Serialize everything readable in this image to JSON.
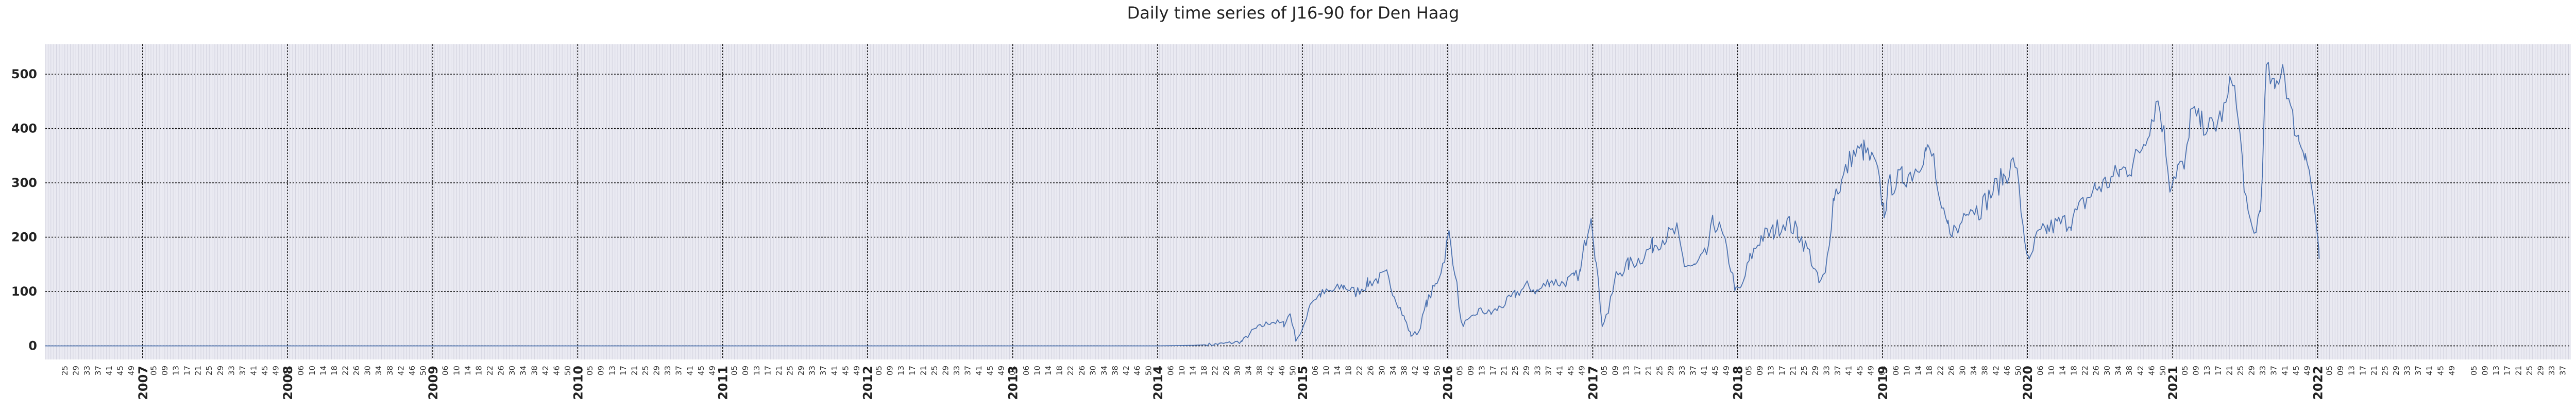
{
  "chart_data": {
    "type": "line",
    "title": "Daily time series of J16-90 for Den Haag",
    "xlabel": "",
    "ylabel": "",
    "x_range": [
      "2006-05-01",
      "2023-10-01"
    ],
    "ylim": [
      -25,
      555
    ],
    "yticks": [
      0,
      100,
      200,
      300,
      400,
      500
    ],
    "grid": true,
    "x_major_ticks": [
      "2007",
      "2008",
      "2009",
      "2010",
      "2011",
      "2012",
      "2013",
      "2014",
      "2015",
      "2016",
      "2017",
      "2018",
      "2019",
      "2020",
      "2021",
      "2022"
    ],
    "x_minor_tick_format": "ISO week number (every ~4 weeks)",
    "series": [
      {
        "name": "",
        "color": "#4c72b0",
        "points": [
          [
            "2006-05-01",
            0
          ],
          [
            "2013-12-31",
            0
          ],
          [
            "2014-04-01",
            1
          ],
          [
            "2014-06-01",
            3
          ],
          [
            "2014-08-01",
            8
          ],
          [
            "2014-09-01",
            30
          ],
          [
            "2014-10-15",
            45
          ],
          [
            "2014-11-15",
            40
          ],
          [
            "2014-12-01",
            60
          ],
          [
            "2014-12-15",
            12
          ],
          [
            "2015-01-01",
            28
          ],
          [
            "2015-01-20",
            80
          ],
          [
            "2015-02-15",
            95
          ],
          [
            "2015-03-15",
            100
          ],
          [
            "2015-04-15",
            110
          ],
          [
            "2015-05-15",
            98
          ],
          [
            "2015-06-15",
            115
          ],
          [
            "2015-07-15",
            125
          ],
          [
            "2015-08-01",
            130
          ],
          [
            "2015-08-20",
            95
          ],
          [
            "2015-09-15",
            50
          ],
          [
            "2015-10-01",
            20
          ],
          [
            "2015-10-20",
            25
          ],
          [
            "2015-11-10",
            80
          ],
          [
            "2015-12-01",
            110
          ],
          [
            "2015-12-20",
            150
          ],
          [
            "2016-01-05",
            205
          ],
          [
            "2016-01-20",
            140
          ],
          [
            "2016-02-05",
            40
          ],
          [
            "2016-02-25",
            45
          ],
          [
            "2016-03-20",
            65
          ],
          [
            "2016-04-20",
            60
          ],
          [
            "2016-05-20",
            75
          ],
          [
            "2016-06-20",
            95
          ],
          [
            "2016-07-20",
            110
          ],
          [
            "2016-08-15",
            100
          ],
          [
            "2016-09-15",
            120
          ],
          [
            "2016-10-15",
            115
          ],
          [
            "2016-11-15",
            125
          ],
          [
            "2016-12-01",
            135
          ],
          [
            "2016-12-15",
            200
          ],
          [
            "2016-12-28",
            250
          ],
          [
            "2017-01-10",
            150
          ],
          [
            "2017-01-25",
            40
          ],
          [
            "2017-02-10",
            65
          ],
          [
            "2017-03-01",
            130
          ],
          [
            "2017-04-01",
            150
          ],
          [
            "2017-05-01",
            160
          ],
          [
            "2017-06-01",
            185
          ],
          [
            "2017-07-01",
            200
          ],
          [
            "2017-08-01",
            210
          ],
          [
            "2017-08-20",
            150
          ],
          [
            "2017-09-15",
            145
          ],
          [
            "2017-10-15",
            170
          ],
          [
            "2017-11-01",
            230
          ],
          [
            "2017-11-20",
            210
          ],
          [
            "2017-12-10",
            160
          ],
          [
            "2017-12-28",
            100
          ],
          [
            "2018-01-10",
            105
          ],
          [
            "2018-02-01",
            160
          ],
          [
            "2018-03-01",
            200
          ],
          [
            "2018-04-01",
            210
          ],
          [
            "2018-05-01",
            230
          ],
          [
            "2018-06-01",
            210
          ],
          [
            "2018-07-01",
            170
          ],
          [
            "2018-07-25",
            115
          ],
          [
            "2018-08-10",
            130
          ],
          [
            "2018-09-01",
            280
          ],
          [
            "2018-09-20",
            300
          ],
          [
            "2018-10-15",
            350
          ],
          [
            "2018-11-15",
            360
          ],
          [
            "2018-12-15",
            330
          ],
          [
            "2019-01-05",
            250
          ],
          [
            "2019-01-20",
            295
          ],
          [
            "2019-02-20",
            310
          ],
          [
            "2019-03-20",
            320
          ],
          [
            "2019-04-20",
            360
          ],
          [
            "2019-05-10",
            345
          ],
          [
            "2019-05-25",
            250
          ],
          [
            "2019-06-15",
            220
          ],
          [
            "2019-07-10",
            210
          ],
          [
            "2019-08-01",
            260
          ],
          [
            "2019-09-01",
            250
          ],
          [
            "2019-10-01",
            280
          ],
          [
            "2019-11-01",
            310
          ],
          [
            "2019-12-01",
            340
          ],
          [
            "2019-12-25",
            200
          ],
          [
            "2020-01-05",
            150
          ],
          [
            "2020-01-25",
            200
          ],
          [
            "2020-02-20",
            215
          ],
          [
            "2020-03-20",
            225
          ],
          [
            "2020-04-20",
            230
          ],
          [
            "2020-05-20",
            260
          ],
          [
            "2020-06-20",
            290
          ],
          [
            "2020-07-20",
            300
          ],
          [
            "2020-08-20",
            320
          ],
          [
            "2020-09-20",
            330
          ],
          [
            "2020-10-20",
            375
          ],
          [
            "2020-11-10",
            420
          ],
          [
            "2020-11-25",
            455
          ],
          [
            "2020-12-10",
            390
          ],
          [
            "2020-12-25",
            300
          ],
          [
            "2021-01-15",
            330
          ],
          [
            "2021-02-01",
            325
          ],
          [
            "2021-02-15",
            430
          ],
          [
            "2021-03-15",
            410
          ],
          [
            "2021-04-15",
            400
          ],
          [
            "2021-05-15",
            440
          ],
          [
            "2021-06-01",
            500
          ],
          [
            "2021-06-20",
            380
          ],
          [
            "2021-07-10",
            230
          ],
          [
            "2021-07-25",
            205
          ],
          [
            "2021-08-10",
            250
          ],
          [
            "2021-08-25",
            510
          ],
          [
            "2021-09-15",
            470
          ],
          [
            "2021-10-05",
            520
          ],
          [
            "2021-10-25",
            430
          ],
          [
            "2021-11-15",
            380
          ],
          [
            "2021-12-01",
            360
          ],
          [
            "2021-12-15",
            300
          ],
          [
            "2021-12-25",
            250
          ],
          [
            "2022-01-05",
            160
          ]
        ]
      }
    ]
  }
}
